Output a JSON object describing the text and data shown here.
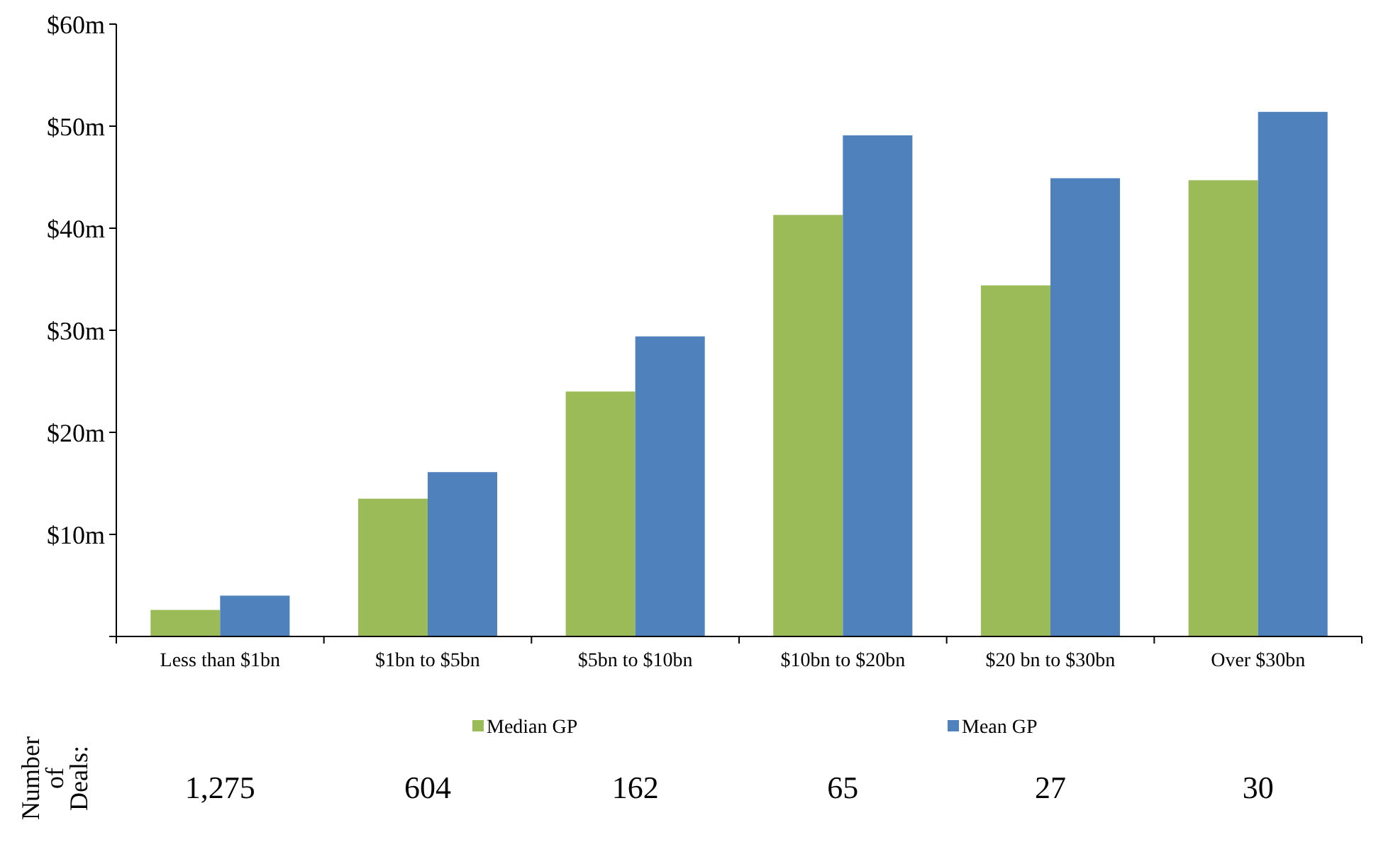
{
  "chart_data": {
    "type": "bar",
    "categories": [
      "Less than $1bn",
      "$1bn to $5bn",
      "$5bn to $10bn",
      "$10bn to $20bn",
      "$20 bn to $30bn",
      "Over $30bn"
    ],
    "series": [
      {
        "name": "Median GP",
        "color": "#9bbb59",
        "values": [
          2.6,
          13.5,
          24.0,
          41.3,
          34.4,
          44.7
        ]
      },
      {
        "name": "Mean GP",
        "color": "#4f81bd",
        "values": [
          4.0,
          16.1,
          29.4,
          49.1,
          44.9,
          51.4
        ]
      }
    ],
    "ylim": [
      0,
      60
    ],
    "yticks": [
      {
        "value": 0,
        "label": null
      },
      {
        "value": 10,
        "label": "$10m"
      },
      {
        "value": 20,
        "label": "$20m"
      },
      {
        "value": 30,
        "label": "$30m"
      },
      {
        "value": 40,
        "label": "$40m"
      },
      {
        "value": 50,
        "label": "$50m"
      },
      {
        "value": 60,
        "label": "$60m"
      }
    ],
    "grid": false,
    "legend": "bottom",
    "annotations": [
      "Number of Deals:",
      "1,275",
      "604",
      "162",
      "65",
      "27",
      "30"
    ]
  }
}
